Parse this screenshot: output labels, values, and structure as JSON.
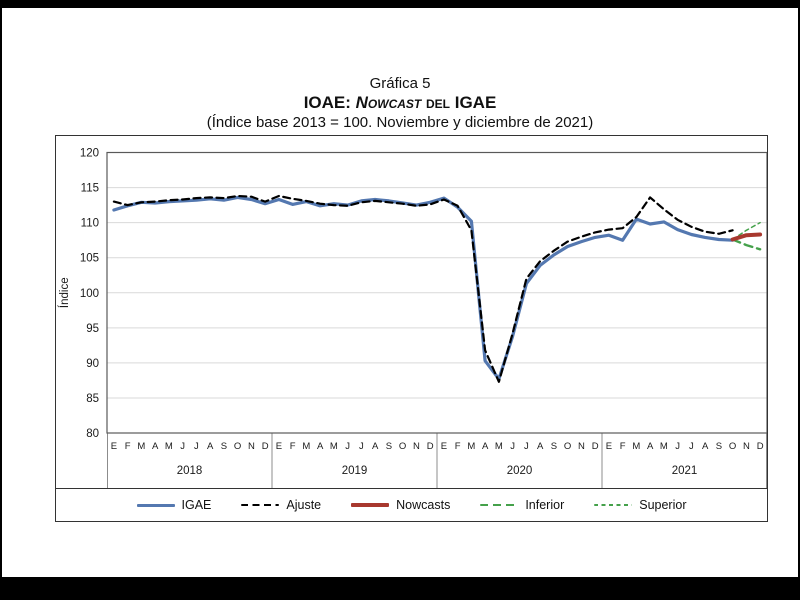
{
  "title": {
    "line1": "Gráfica 5",
    "line2_prefix": "IOAE: ",
    "line2_nowcast": "Nowcast",
    "line2_del": " del ",
    "line2_suffix": "IGAE",
    "line3": "(Índice base 2013 = 100. Noviembre y diciembre de 2021)"
  },
  "colors": {
    "igae": "#5478b0",
    "ajuste": "#000000",
    "nowcasts": "#a8382e",
    "inferior": "#45a14b",
    "superior": "#45a14b",
    "gridline": "#d9d9d9",
    "frame": "#595959",
    "separator": "#8c8c8c"
  },
  "chart_data": {
    "type": "line",
    "title": "IOAE: Nowcast del IGAE",
    "subtitle": "(Índice base 2013 = 100. Noviembre y diciembre de 2021)",
    "ylabel": "Índice",
    "ylim": [
      80,
      120
    ],
    "ytick_step": 5,
    "grid": true,
    "legend_position": "bottom",
    "years": [
      "2018",
      "2019",
      "2020",
      "2021"
    ],
    "month_letters": [
      "E",
      "F",
      "M",
      "A",
      "M",
      "J",
      "J",
      "A",
      "S",
      "O",
      "N",
      "D"
    ],
    "series": [
      {
        "name": "IGAE",
        "color_key": "igae",
        "line": "solid",
        "width": 3.2,
        "start_index": 0,
        "values": [
          111.8,
          112.4,
          112.9,
          112.8,
          113.0,
          113.1,
          113.2,
          113.4,
          113.2,
          113.6,
          113.3,
          112.7,
          113.3,
          112.6,
          113.0,
          112.4,
          112.7,
          112.5,
          113.1,
          113.3,
          113.1,
          112.8,
          112.5,
          112.9,
          113.5,
          112.2,
          110.2,
          90.3,
          87.7,
          93.8,
          101.3,
          103.9,
          105.4,
          106.6,
          107.3,
          107.9,
          108.2,
          107.5,
          110.5,
          109.8,
          110.1,
          109.0,
          108.3,
          107.9,
          107.6,
          107.5
        ]
      },
      {
        "name": "Ajuste",
        "color_key": "ajuste",
        "line": "dashed",
        "dash": "7 4.5",
        "width": 2.2,
        "start_index": 0,
        "values": [
          113.0,
          112.5,
          112.9,
          113.0,
          113.2,
          113.3,
          113.5,
          113.6,
          113.5,
          113.8,
          113.7,
          113.0,
          113.8,
          113.4,
          113.1,
          112.7,
          112.5,
          112.4,
          112.9,
          113.1,
          112.9,
          112.7,
          112.4,
          112.6,
          113.3,
          112.4,
          108.9,
          91.8,
          87.3,
          94.2,
          102.0,
          104.5,
          106.0,
          107.3,
          108.0,
          108.6,
          109.0,
          109.2,
          110.8,
          113.6,
          111.9,
          110.4,
          109.4,
          108.7,
          108.4,
          108.9
        ]
      },
      {
        "name": "Nowcasts",
        "color_key": "nowcasts",
        "line": "solid",
        "width": 4,
        "start_index": 45,
        "values": [
          107.6,
          108.2,
          108.3
        ]
      },
      {
        "name": "Inferior",
        "color_key": "inferior",
        "line": "dashed",
        "dash": "8 5",
        "width": 2.4,
        "start_index": 45,
        "values": [
          107.6,
          106.8,
          106.2
        ]
      },
      {
        "name": "Superior",
        "color_key": "superior",
        "line": "dashed",
        "dash": "4 3.5",
        "width": 1.5,
        "start_index": 45,
        "values": [
          107.6,
          108.9,
          110.0
        ]
      }
    ]
  }
}
